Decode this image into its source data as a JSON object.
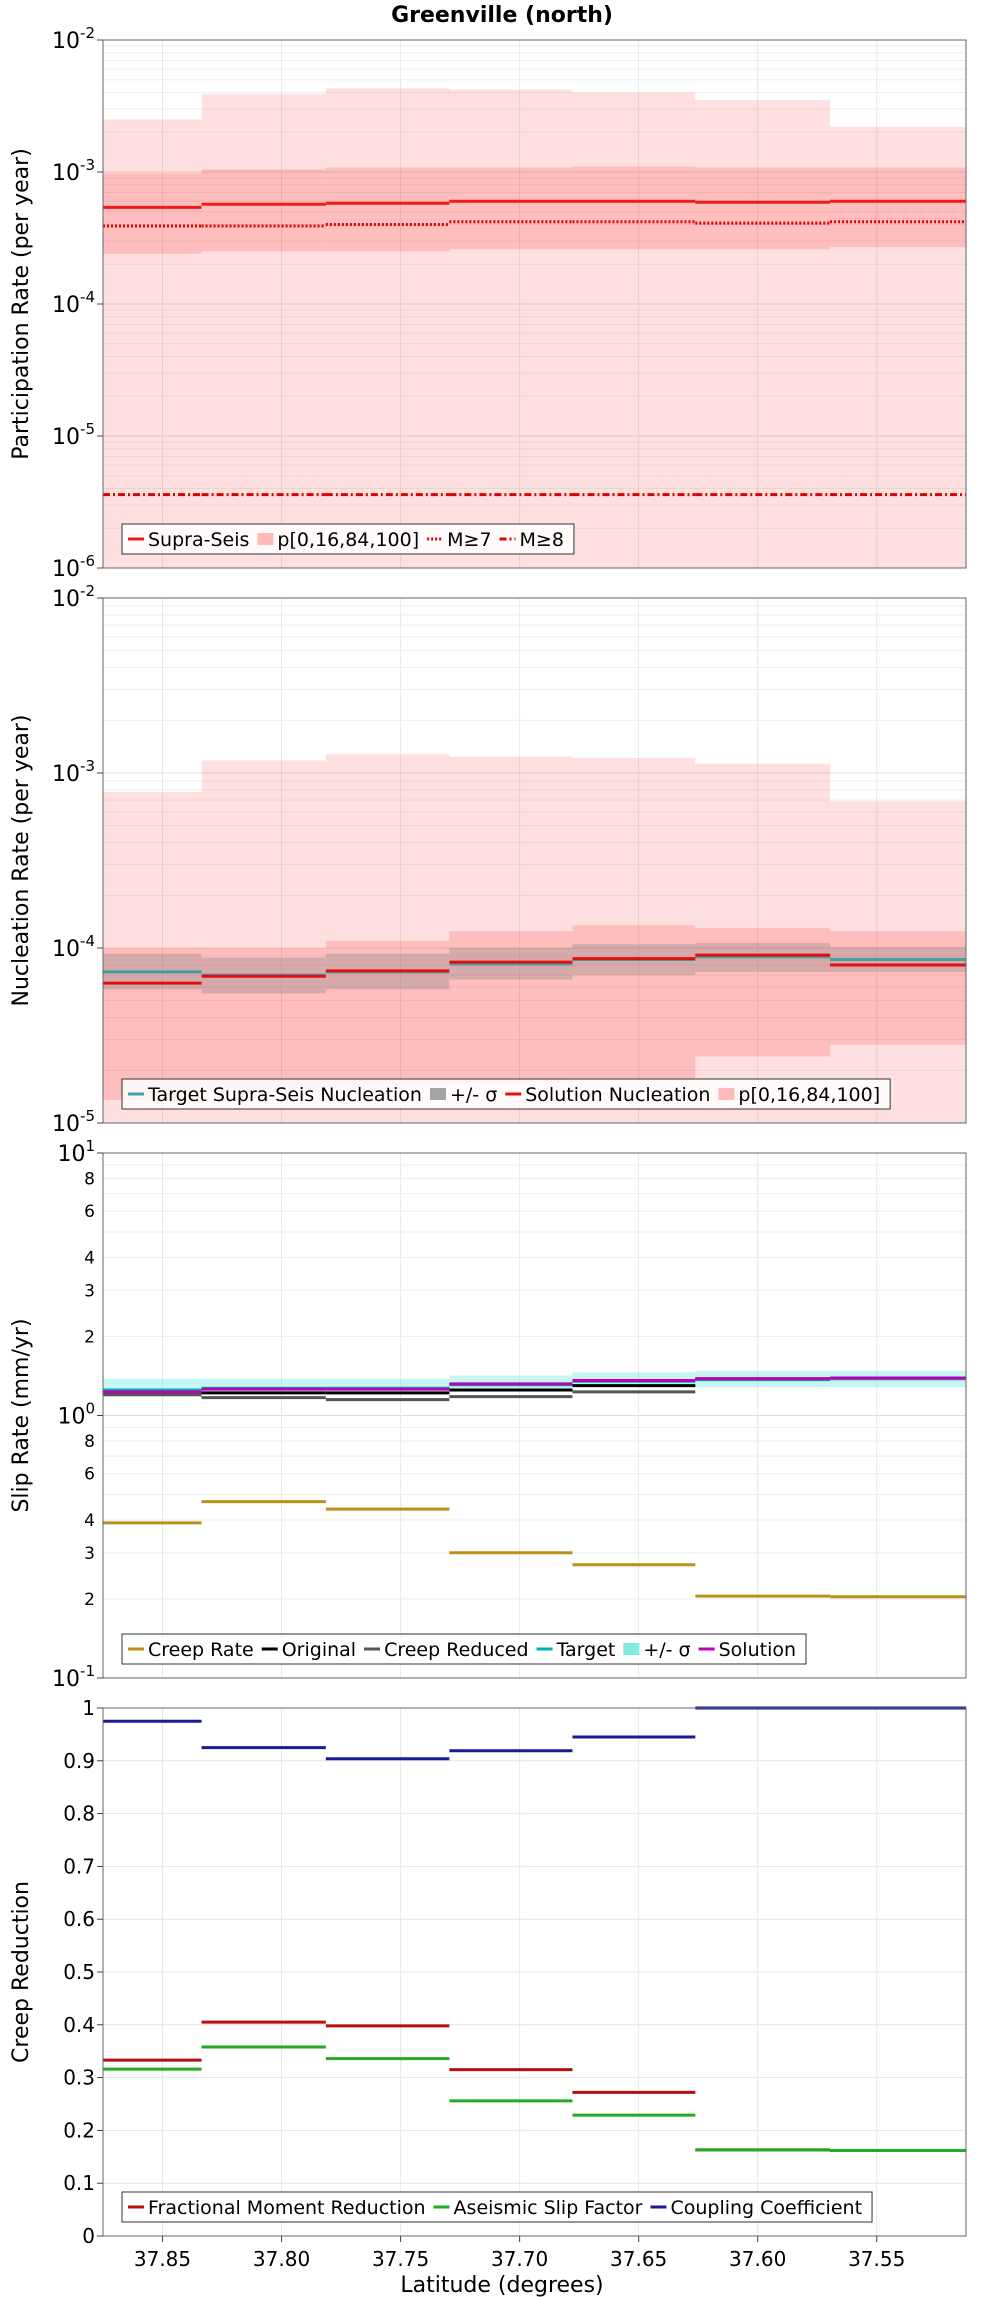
{
  "title": "Greenville (north)",
  "x_axis": {
    "label": "Latitude (degrees)",
    "range": [
      37.875,
      37.5125
    ],
    "ticks": [
      "37.85",
      "37.80",
      "37.75",
      "37.70",
      "37.65",
      "37.60",
      "37.55"
    ],
    "tick_values": [
      37.85,
      37.8,
      37.75,
      37.7,
      37.65,
      37.6,
      37.55
    ]
  },
  "bins": [
    37.875,
    37.8336,
    37.7814,
    37.7295,
    37.6778,
    37.6262,
    37.5696,
    37.5125
  ],
  "chart_data": [
    {
      "type": "area",
      "ylabel": "Participation Rate (per year)",
      "yscale": "log",
      "ylim": [
        1e-06,
        0.01
      ],
      "ytick_base": "10",
      "ytick_exponents": [
        "-6",
        "-5",
        "-4",
        "-3",
        "-2"
      ],
      "legend": [
        "Supra-Seis",
        "p[0,16,84,100]",
        "M≥7",
        "M≥8"
      ],
      "legend_location": "bottom-left",
      "series": [
        {
          "name": "p[0,16,84,100]",
          "kind": "band",
          "color": "#ff0000",
          "alpha": 0.12,
          "lower": [
            1e-06,
            1e-06,
            1e-06,
            1e-06,
            1e-06,
            1e-06,
            1e-06
          ],
          "upper": [
            0.0025,
            0.0039,
            0.0043,
            0.0042,
            0.004,
            0.0035,
            0.0022
          ]
        },
        {
          "name": "p[0,16,84,100]",
          "kind": "band",
          "color": "#ff0000",
          "alpha": 0.15,
          "lower": [
            0.00024,
            0.00025,
            0.00025,
            0.00026,
            0.00026,
            0.00026,
            0.00027
          ],
          "upper": [
            0.00098,
            0.00105,
            0.00108,
            0.00108,
            0.0011,
            0.00108,
            0.00108
          ]
        },
        {
          "name": "Supra-Seis",
          "kind": "step",
          "color": "#ee1b1b",
          "values": [
            0.00054,
            0.00057,
            0.00058,
            0.0006,
            0.0006,
            0.00059,
            0.0006
          ]
        },
        {
          "name": "M≥7",
          "kind": "step",
          "color": "#dd0000",
          "dash": "dotted",
          "values": [
            0.00039,
            0.00039,
            0.0004,
            0.00042,
            0.00042,
            0.00041,
            0.00042
          ]
        },
        {
          "name": "M≥8",
          "kind": "step",
          "color": "#dd0000",
          "dash": "dashdot",
          "values": [
            3.6e-06,
            3.6e-06,
            3.6e-06,
            3.6e-06,
            3.6e-06,
            3.6e-06,
            3.6e-06
          ]
        }
      ]
    },
    {
      "type": "area",
      "ylabel": "Nucleation Rate (per year)",
      "yscale": "log",
      "ylim": [
        1e-05,
        0.01
      ],
      "ytick_base": "10",
      "ytick_exponents": [
        "-5",
        "-4",
        "-3",
        "-2"
      ],
      "legend": [
        "Target Supra-Seis Nucleation",
        "+/- σ",
        "Solution Nucleation",
        "p[0,16,84,100]"
      ],
      "legend_location": "bottom-left",
      "series": [
        {
          "name": "p[0,16,84,100]",
          "kind": "band",
          "color": "#ff0000",
          "alpha": 0.12,
          "lower": [
            1e-05,
            1e-05,
            1e-05,
            1e-05,
            1e-05,
            1e-05,
            1e-05
          ],
          "upper": [
            0.00078,
            0.00118,
            0.00128,
            0.00124,
            0.00122,
            0.00113,
            0.00069
          ]
        },
        {
          "name": "p[0,16,84,100]",
          "kind": "band",
          "color": "#ff0000",
          "alpha": 0.15,
          "lower": [
            1.35e-05,
            1.5e-05,
            1.6e-05,
            1.7e-05,
            1.8e-05,
            2.4e-05,
            2.8e-05
          ],
          "upper": [
            0.0001,
            0.0001,
            0.00011,
            0.000125,
            0.000135,
            0.00013,
            0.000125
          ]
        },
        {
          "name": "+/- σ",
          "kind": "band",
          "color": "#808080",
          "alpha": 0.32,
          "lower": [
            5.8e-05,
            5.5e-05,
            5.8e-05,
            6.6e-05,
            7e-05,
            7.3e-05,
            7.3e-05
          ],
          "upper": [
            9.3e-05,
            8.8e-05,
            9.3e-05,
            0.0001,
            0.000105,
            0.000107,
            0.000101
          ]
        },
        {
          "name": "Target Supra-Seis Nucleation",
          "kind": "step",
          "color": "#47a0a0",
          "values": [
            7.3e-05,
            7e-05,
            7.3e-05,
            8.1e-05,
            8.6e-05,
            8.9e-05,
            8.6e-05
          ]
        },
        {
          "name": "Solution Nucleation",
          "kind": "step",
          "color": "#e01010",
          "values": [
            6.3e-05,
            6.9e-05,
            7.4e-05,
            8.3e-05,
            8.7e-05,
            9.1e-05,
            8e-05
          ]
        }
      ]
    },
    {
      "type": "line",
      "ylabel": "Slip Rate (mm/yr)",
      "yscale": "log",
      "ylim": [
        0.1,
        10
      ],
      "ytick_base": "10",
      "ytick_exponents": [
        "-1",
        "0",
        "1"
      ],
      "minor_tick_labels": [
        "2",
        "3",
        "4",
        "6",
        "8"
      ],
      "legend": [
        "Creep Rate",
        "Original",
        "Creep Reduced",
        "Target",
        "+/- σ",
        "Solution"
      ],
      "legend_location": "bottom-left",
      "series": [
        {
          "name": "+/- σ",
          "kind": "band",
          "color": "#40e0d0",
          "alpha": 0.3,
          "lower": [
            1.18,
            1.22,
            1.24,
            1.26,
            1.28,
            1.28,
            1.28
          ],
          "upper": [
            1.38,
            1.38,
            1.38,
            1.42,
            1.46,
            1.48,
            1.48
          ]
        },
        {
          "name": "Creep Rate",
          "kind": "step",
          "color": "#b8901a",
          "values": [
            0.39,
            0.47,
            0.44,
            0.3,
            0.27,
            0.205,
            0.204
          ]
        },
        {
          "name": "Original",
          "kind": "step",
          "color": "#000000",
          "values": [
            1.22,
            1.22,
            1.22,
            1.25,
            1.3,
            1.38,
            1.39
          ]
        },
        {
          "name": "Creep Reduced",
          "kind": "step",
          "color": "#555555",
          "values": [
            1.2,
            1.17,
            1.15,
            1.18,
            1.23,
            null,
            null
          ]
        },
        {
          "name": "Target",
          "kind": "step",
          "color": "#00b0a0",
          "values": [
            1.25,
            1.27,
            1.27,
            1.31,
            1.35,
            1.37,
            1.38
          ]
        },
        {
          "name": "Solution",
          "kind": "step",
          "color": "#bb00bb",
          "values": [
            1.23,
            1.26,
            1.26,
            1.32,
            1.36,
            1.38,
            1.39
          ]
        }
      ]
    },
    {
      "type": "line",
      "ylabel": "Creep Reduction",
      "yscale": "linear",
      "ylim": [
        0,
        1
      ],
      "yticks": [
        "0",
        "0.1",
        "0.2",
        "0.3",
        "0.4",
        "0.5",
        "0.6",
        "0.7",
        "0.8",
        "0.9",
        "1"
      ],
      "ytick_values": [
        0,
        0.1,
        0.2,
        0.3,
        0.4,
        0.5,
        0.6,
        0.7,
        0.8,
        0.9,
        1
      ],
      "legend": [
        "Fractional Moment Reduction",
        "Aseismic Slip Factor",
        "Coupling Coefficient"
      ],
      "legend_location": "bottom-left",
      "series": [
        {
          "name": "Fractional Moment Reduction",
          "kind": "step",
          "color": "#b01010",
          "values": [
            0.333,
            0.405,
            0.398,
            0.315,
            0.272,
            0.163,
            0.162
          ]
        },
        {
          "name": "Aseismic Slip Factor",
          "kind": "step",
          "color": "#22aa22",
          "values": [
            0.316,
            0.358,
            0.336,
            0.256,
            0.229,
            0.163,
            0.162
          ]
        },
        {
          "name": "Coupling Coefficient",
          "kind": "step",
          "color": "#1a1a99",
          "values": [
            0.975,
            0.925,
            0.904,
            0.919,
            0.945,
            1.0,
            1.0
          ]
        }
      ]
    }
  ]
}
